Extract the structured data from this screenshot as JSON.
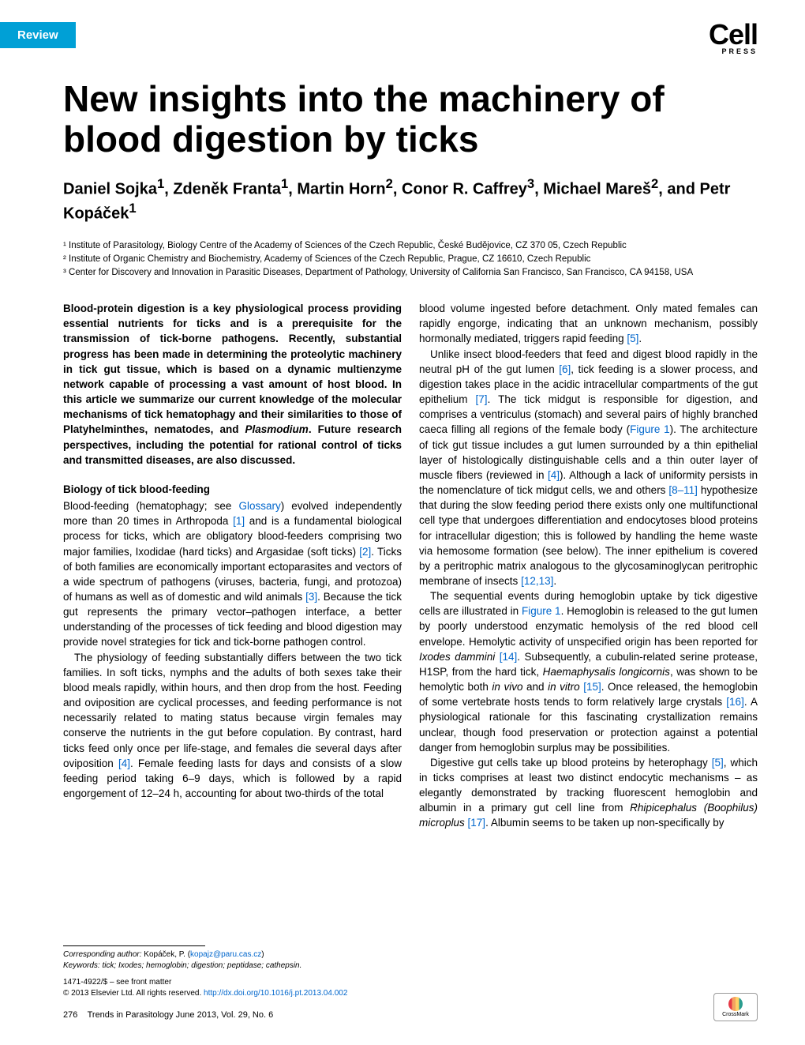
{
  "header": {
    "badge": "Review",
    "logo_main": "Cell",
    "logo_sub": "PRESS"
  },
  "article": {
    "title": "New insights into the machinery of blood digestion by ticks",
    "authors_html": "Daniel Sojka<sup>1</sup>, Zdeněk Franta<sup>1</sup>, Martin Horn<sup>2</sup>, Conor R. Caffrey<sup>3</sup>, Michael Mareš<sup>2</sup>, and Petr Kopáček<sup>1</sup>",
    "affiliations": [
      "¹ Institute of Parasitology, Biology Centre of the Academy of Sciences of the Czech Republic, České Budějovice, CZ 370 05, Czech Republic",
      "² Institute of Organic Chemistry and Biochemistry, Academy of Sciences of the Czech Republic, Prague, CZ 16610, Czech Republic",
      "³ Center for Discovery and Innovation in Parasitic Diseases, Department of Pathology, University of California San Francisco, San Francisco, CA 94158, USA"
    ]
  },
  "left": {
    "abstract": "Blood-protein digestion is a key physiological process providing essential nutrients for ticks and is a prerequisite for the transmission of tick-borne pathogens. Recently, substantial progress has been made in determining the proteolytic machinery in tick gut tissue, which is based on a dynamic multienzyme network capable of processing a vast amount of host blood. In this article we summarize our current knowledge of the molecular mechanisms of tick hematophagy and their similarities to those of Platyhelminthes, nematodes, and Plasmodium. Future research perspectives, including the potential for rational control of ticks and transmitted diseases, are also discussed.",
    "section_heading": "Biology of tick blood-feeding",
    "p1": "Blood-feeding (hematophagy; see Glossary) evolved independently more than 20 times in Arthropoda [1] and is a fundamental biological process for ticks, which are obligatory blood-feeders comprising two major families, Ixodidae (hard ticks) and Argasidae (soft ticks) [2]. Ticks of both families are economically important ectoparasites and vectors of a wide spectrum of pathogens (viruses, bacteria, fungi, and protozoa) of humans as well as of domestic and wild animals [3]. Because the tick gut represents the primary vector–pathogen interface, a better understanding of the processes of tick feeding and blood digestion may provide novel strategies for tick and tick-borne pathogen control.",
    "p2": "The physiology of feeding substantially differs between the two tick families. In soft ticks, nymphs and the adults of both sexes take their blood meals rapidly, within hours, and then drop from the host. Feeding and oviposition are cyclical processes, and feeding performance is not necessarily related to mating status because virgin females may conserve the nutrients in the gut before copulation. By contrast, hard ticks feed only once per life-stage, and females die several days after oviposition [4]. Female feeding lasts for days and consists of a slow feeding period taking 6–9 days, which is followed by a rapid engorgement of 12–24 h, accounting for about two-thirds of the total"
  },
  "right": {
    "p1": "blood volume ingested before detachment. Only mated females can rapidly engorge, indicating that an unknown mechanism, possibly hormonally mediated, triggers rapid feeding [5].",
    "p2": "Unlike insect blood-feeders that feed and digest blood rapidly in the neutral pH of the gut lumen [6], tick feeding is a slower process, and digestion takes place in the acidic intracellular compartments of the gut epithelium [7]. The tick midgut is responsible for digestion, and comprises a ventriculus (stomach) and several pairs of highly branched caeca filling all regions of the female body (Figure 1). The architecture of tick gut tissue includes a gut lumen surrounded by a thin epithelial layer of histologically distinguishable cells and a thin outer layer of muscle fibers (reviewed in [4]). Although a lack of uniformity persists in the nomenclature of tick midgut cells, we and others [8–11] hypothesize that during the slow feeding period there exists only one multifunctional cell type that undergoes differentiation and endocytoses blood proteins for intracellular digestion; this is followed by handling the heme waste via hemosome formation (see below). The inner epithelium is covered by a peritrophic matrix analogous to the glycosaminoglycan peritrophic membrane of insects [12,13].",
    "p3": "The sequential events during hemoglobin uptake by tick digestive cells are illustrated in Figure 1. Hemoglobin is released to the gut lumen by poorly understood enzymatic hemolysis of the red blood cell envelope. Hemolytic activity of unspecified origin has been reported for Ixodes dammini [14]. Subsequently, a cubulin-related serine protease, H1SP, from the hard tick, Haemaphysalis longicornis, was shown to be hemolytic both in vivo and in vitro [15]. Once released, the hemoglobin of some vertebrate hosts tends to form relatively large crystals [16]. A physiological rationale for this fascinating crystallization remains unclear, though food preservation or protection against a potential danger from hemoglobin surplus may be possibilities.",
    "p4": "Digestive gut cells take up blood proteins by heterophagy [5], which in ticks comprises at least two distinct endocytic mechanisms – as elegantly demonstrated by tracking fluorescent hemoglobin and albumin in a primary gut cell line from Rhipicephalus (Boophilus) microplus [17]. Albumin seems to be taken up non-specifically by"
  },
  "footer": {
    "corresponding_label": "Corresponding author:",
    "corresponding_text": " Kopáček, P. (kopajz@paru.cas.cz)",
    "keywords_label": "Keywords:",
    "keywords_text": " tick; Ixodes; hemoglobin; digestion; peptidase; cathepsin.",
    "issn": "1471-4922/$ – see front matter",
    "copyright": "© 2013 Elsevier Ltd. All rights reserved. ",
    "doi": "http://dx.doi.org/10.1016/j.pt.2013.04.002",
    "page_number": "276",
    "journal_info": "Trends in Parasitology June 2013, Vol. 29, No. 6",
    "crossmark": "CrossMark"
  },
  "colors": {
    "badge_bg": "#00a0d6",
    "link": "#0066cc",
    "text": "#000000",
    "bg": "#ffffff"
  }
}
